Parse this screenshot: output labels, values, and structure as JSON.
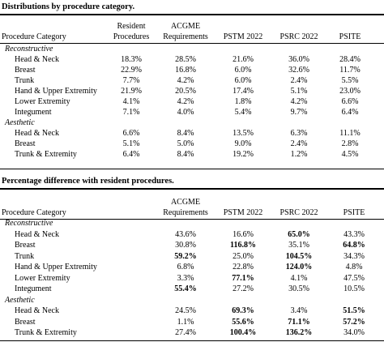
{
  "tables": [
    {
      "caption": "Distributions by procedure category.",
      "headers": [
        "Procedure Category",
        "Resident\nProcedures",
        "ACGME\nRequirements",
        "PSTM 2022",
        "PSRC 2022",
        "PSITE"
      ],
      "groups": [
        {
          "label": "Reconstructive",
          "rows": [
            {
              "category": "Head & Neck",
              "values": [
                "18.3%",
                "28.5%",
                "21.6%",
                "36.0%",
                "28.4%"
              ]
            },
            {
              "category": "Breast",
              "values": [
                "22.9%",
                "16.8%",
                "6.0%",
                "32.6%",
                "11.7%"
              ]
            },
            {
              "category": "Trunk",
              "values": [
                "7.7%",
                "4.2%",
                "6.0%",
                "2.4%",
                "5.5%"
              ]
            },
            {
              "category": "Hand & Upper Extremity",
              "values": [
                "21.9%",
                "20.5%",
                "17.4%",
                "5.1%",
                "23.0%"
              ]
            },
            {
              "category": "Lower Extremity",
              "values": [
                "4.1%",
                "4.2%",
                "1.8%",
                "4.2%",
                "6.6%"
              ]
            },
            {
              "category": "Integument",
              "values": [
                "7.1%",
                "4.0%",
                "5.4%",
                "9.7%",
                "6.4%"
              ]
            }
          ]
        },
        {
          "label": "Aesthetic",
          "rows": [
            {
              "category": "Head & Neck",
              "values": [
                "6.6%",
                "8.4%",
                "13.5%",
                "6.3%",
                "11.1%"
              ]
            },
            {
              "category": "Breast",
              "values": [
                "5.1%",
                "5.0%",
                "9.0%",
                "2.4%",
                "2.8%"
              ]
            },
            {
              "category": "Trunk & Extremity",
              "values": [
                "6.4%",
                "8.4%",
                "19.2%",
                "1.2%",
                "4.5%"
              ]
            }
          ]
        }
      ]
    },
    {
      "caption": "Percentage difference with resident procedures.",
      "headers": [
        "Procedure Category",
        "ACGME\nRequirements",
        "PSTM 2022",
        "PSRC 2022",
        "PSITE"
      ],
      "groups": [
        {
          "label": "Reconstructive",
          "rows": [
            {
              "category": "Head & Neck",
              "values": [
                "43.6%",
                "16.6%",
                "65.0%",
                "43.3%"
              ],
              "bold": [
                false,
                false,
                true,
                false
              ]
            },
            {
              "category": "Breast",
              "values": [
                "30.8%",
                "116.8%",
                "35.1%",
                "64.8%"
              ],
              "bold": [
                false,
                true,
                false,
                true
              ]
            },
            {
              "category": "Trunk",
              "values": [
                "59.2%",
                "25.0%",
                "104.5%",
                "34.3%"
              ],
              "bold": [
                true,
                false,
                true,
                false
              ]
            },
            {
              "category": "Hand & Upper Extremity",
              "values": [
                "6.8%",
                "22.8%",
                "124.0%",
                "4.8%"
              ],
              "bold": [
                false,
                false,
                true,
                false
              ]
            },
            {
              "category": "Lower Extremity",
              "values": [
                "3.3%",
                "77.1%",
                "4.1%",
                "47.5%"
              ],
              "bold": [
                false,
                true,
                false,
                false
              ]
            },
            {
              "category": "Integument",
              "values": [
                "55.4%",
                "27.2%",
                "30.5%",
                "10.5%"
              ],
              "bold": [
                true,
                false,
                false,
                false
              ]
            }
          ]
        },
        {
          "label": "Aesthetic",
          "rows": [
            {
              "category": "Head & Neck",
              "values": [
                "24.5%",
                "69.3%",
                "3.4%",
                "51.5%"
              ],
              "bold": [
                false,
                true,
                false,
                true
              ]
            },
            {
              "category": "Breast",
              "values": [
                "1.1%",
                "55.6%",
                "71.1%",
                "57.2%"
              ],
              "bold": [
                false,
                true,
                true,
                true
              ]
            },
            {
              "category": "Trunk & Extremity",
              "values": [
                "27.4%",
                "100.4%",
                "136.2%",
                "34.0%"
              ],
              "bold": [
                false,
                true,
                true,
                false
              ]
            }
          ]
        }
      ]
    }
  ]
}
